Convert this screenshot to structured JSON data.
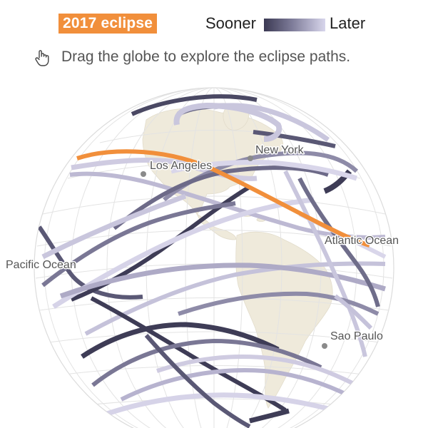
{
  "legend": {
    "badge_label": "2017 eclipse",
    "sooner_label": "Sooner",
    "later_label": "Later",
    "badge_color": "#f18f3b",
    "gradient_colors": [
      "#3b3953",
      "#7d7b98",
      "#d8d6ec"
    ]
  },
  "hint": {
    "icon": "drag-hand-icon",
    "text": "Drag the globe to explore the eclipse paths."
  },
  "places": {
    "new_york": "New York",
    "los_angeles": "Los Angeles",
    "atlantic": "Atlantic Ocean",
    "pacific": "Pacific Ocean",
    "sao_paulo": "Sao Paulo"
  },
  "colors": {
    "land": "#efeadb",
    "ocean": "#ffffff",
    "graticule": "#e3e3e3",
    "highlight_path": "#f18f3b"
  }
}
